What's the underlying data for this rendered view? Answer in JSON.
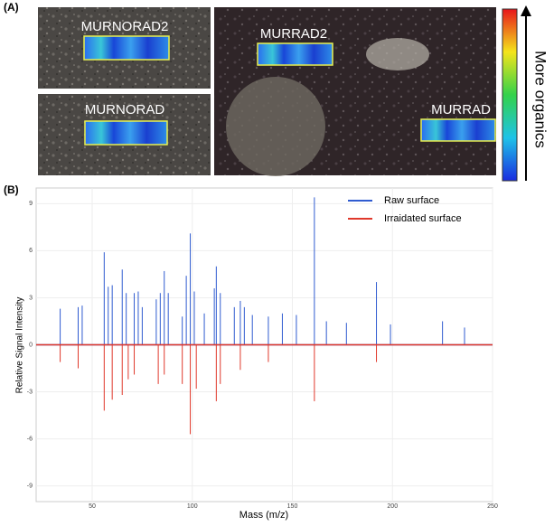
{
  "panel_a": {
    "label": "(A)",
    "tiles": [
      "MURNORAD2",
      "MURNORAD",
      "MURRAD2",
      "MURRAD"
    ],
    "colorbar_label": "More organics"
  },
  "chart_data": {
    "type": "spectrum",
    "panel_label": "(B)",
    "xlabel": "Mass (m/z)",
    "ylabel": "Relative Signal Intensity",
    "xlim": [
      22,
      250
    ],
    "ylim": [
      -10,
      10
    ],
    "xticks": [
      50,
      100,
      150,
      200,
      250
    ],
    "yticks": [
      -9,
      -6,
      -3,
      0,
      3,
      6,
      9
    ],
    "grid": true,
    "legend": "upper right",
    "series": [
      {
        "name": "Raw surface",
        "color": "#2f5bd0",
        "x": [
          34,
          43,
          45,
          56,
          58,
          60,
          65,
          67,
          71,
          73,
          75,
          82,
          84,
          86,
          88,
          95,
          97,
          99,
          101,
          106,
          111,
          112,
          114,
          121,
          124,
          126,
          130,
          138,
          145,
          152,
          161,
          167,
          177,
          192,
          199,
          225,
          236
        ],
        "values": [
          2.3,
          2.4,
          2.5,
          5.9,
          3.7,
          3.8,
          4.8,
          3.3,
          3.3,
          3.4,
          2.4,
          2.9,
          3.3,
          4.7,
          3.3,
          1.8,
          4.4,
          7.1,
          3.4,
          2.0,
          3.6,
          5.0,
          3.3,
          2.4,
          2.8,
          2.4,
          1.9,
          1.8,
          2.0,
          1.9,
          9.4,
          1.5,
          1.4,
          4.0,
          1.3,
          1.5,
          1.1
        ]
      },
      {
        "name": "Irraidated surface",
        "color": "#e0382b",
        "x": [
          34,
          43,
          56,
          60,
          65,
          68,
          71,
          83,
          86,
          95,
          99,
          102,
          112,
          114,
          124,
          138,
          161,
          192
        ],
        "values": [
          -1.1,
          -1.5,
          -4.2,
          -3.5,
          -3.2,
          -2.2,
          -1.9,
          -2.5,
          -1.9,
          -2.5,
          -5.7,
          -2.8,
          -3.6,
          -2.5,
          -1.6,
          -1.1,
          -3.6,
          -1.1
        ]
      }
    ]
  }
}
